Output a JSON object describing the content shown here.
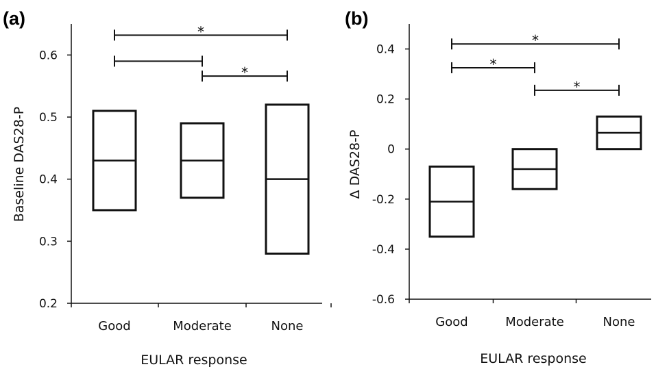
{
  "figure": {
    "ink_color": "#111111",
    "background": "#ffffff"
  },
  "chart_data": [
    {
      "panel_label": "(a)",
      "type": "box",
      "categories": [
        "Good",
        "Moderate",
        "None"
      ],
      "xlabel": "EULAR response",
      "ylabel": "Baseline DAS28-P",
      "ylim": [
        0.2,
        0.65
      ],
      "yticks": [
        "0.2",
        "0.3",
        "0.4",
        "0.5",
        "0.6"
      ],
      "ytick_values": [
        0.2,
        0.3,
        0.4,
        0.5,
        0.6
      ],
      "grid": false,
      "boxes": [
        {
          "category": "Good",
          "q1": 0.35,
          "median": 0.43,
          "q3": 0.51
        },
        {
          "category": "Moderate",
          "q1": 0.37,
          "median": 0.43,
          "q3": 0.49
        },
        {
          "category": "None",
          "q1": 0.28,
          "median": 0.4,
          "q3": 0.52
        }
      ],
      "comparisons": [
        {
          "from": "Good",
          "to": "None",
          "y": 0.632,
          "label": "*"
        },
        {
          "from": "Good",
          "to": "Moderate",
          "y": 0.59,
          "label": ""
        },
        {
          "from": "Moderate",
          "to": "None",
          "y": 0.566,
          "label": "*"
        }
      ]
    },
    {
      "panel_label": "(b)",
      "type": "box",
      "categories": [
        "Good",
        "Moderate",
        "None"
      ],
      "xlabel": "EULAR response",
      "ylabel": "Δ DAS28-P",
      "ylim": [
        -0.6,
        0.5
      ],
      "yticks": [
        "-0.6",
        "-0.4",
        "-0.2",
        "0",
        "0.2",
        "0.4"
      ],
      "ytick_values": [
        -0.6,
        -0.4,
        -0.2,
        0,
        0.2,
        0.4
      ],
      "grid": false,
      "boxes": [
        {
          "category": "Good",
          "q1": -0.35,
          "median": -0.21,
          "q3": -0.07
        },
        {
          "category": "Moderate",
          "q1": -0.16,
          "median": -0.08,
          "q3": 0.0
        },
        {
          "category": "None",
          "q1": 0.0,
          "median": 0.065,
          "q3": 0.13
        }
      ],
      "comparisons": [
        {
          "from": "Good",
          "to": "None",
          "y": 0.42,
          "label": "*"
        },
        {
          "from": "Good",
          "to": "Moderate",
          "y": 0.325,
          "label": "*"
        },
        {
          "from": "Moderate",
          "to": "None",
          "y": 0.235,
          "label": "*"
        }
      ]
    }
  ]
}
